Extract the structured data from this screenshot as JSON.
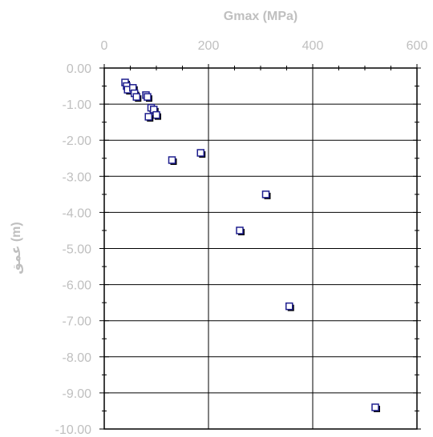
{
  "chart_data": {
    "type": "scatter",
    "title": "",
    "xlabel": "Gmax (MPa)",
    "ylabel": "عمق (m)",
    "x_axis_position": "top",
    "xlim": [
      0,
      600
    ],
    "ylim": [
      -10,
      0
    ],
    "x_ticks": [
      "0",
      "200",
      "400",
      "600"
    ],
    "y_ticks": [
      "0.00",
      "-1.00",
      "-2.00",
      "-3.00",
      "-4.00",
      "-5.00",
      "-6.00",
      "-7.00",
      "-8.00",
      "-9.00",
      "-10.00"
    ],
    "grid": true,
    "legend": "none",
    "marker": "square",
    "marker_color": "#1f1f8f",
    "series": [
      {
        "x": [
          40,
          43,
          45,
          55,
          58,
          62,
          80,
          83,
          90,
          95,
          100,
          85,
          130,
          185,
          310,
          260,
          355,
          520
        ],
        "y": [
          -0.4,
          -0.5,
          -0.6,
          -0.55,
          -0.7,
          -0.8,
          -0.75,
          -0.8,
          -1.1,
          -1.15,
          -1.3,
          -1.35,
          -2.55,
          -2.35,
          -3.5,
          -4.5,
          -6.6,
          -9.4
        ]
      }
    ]
  }
}
